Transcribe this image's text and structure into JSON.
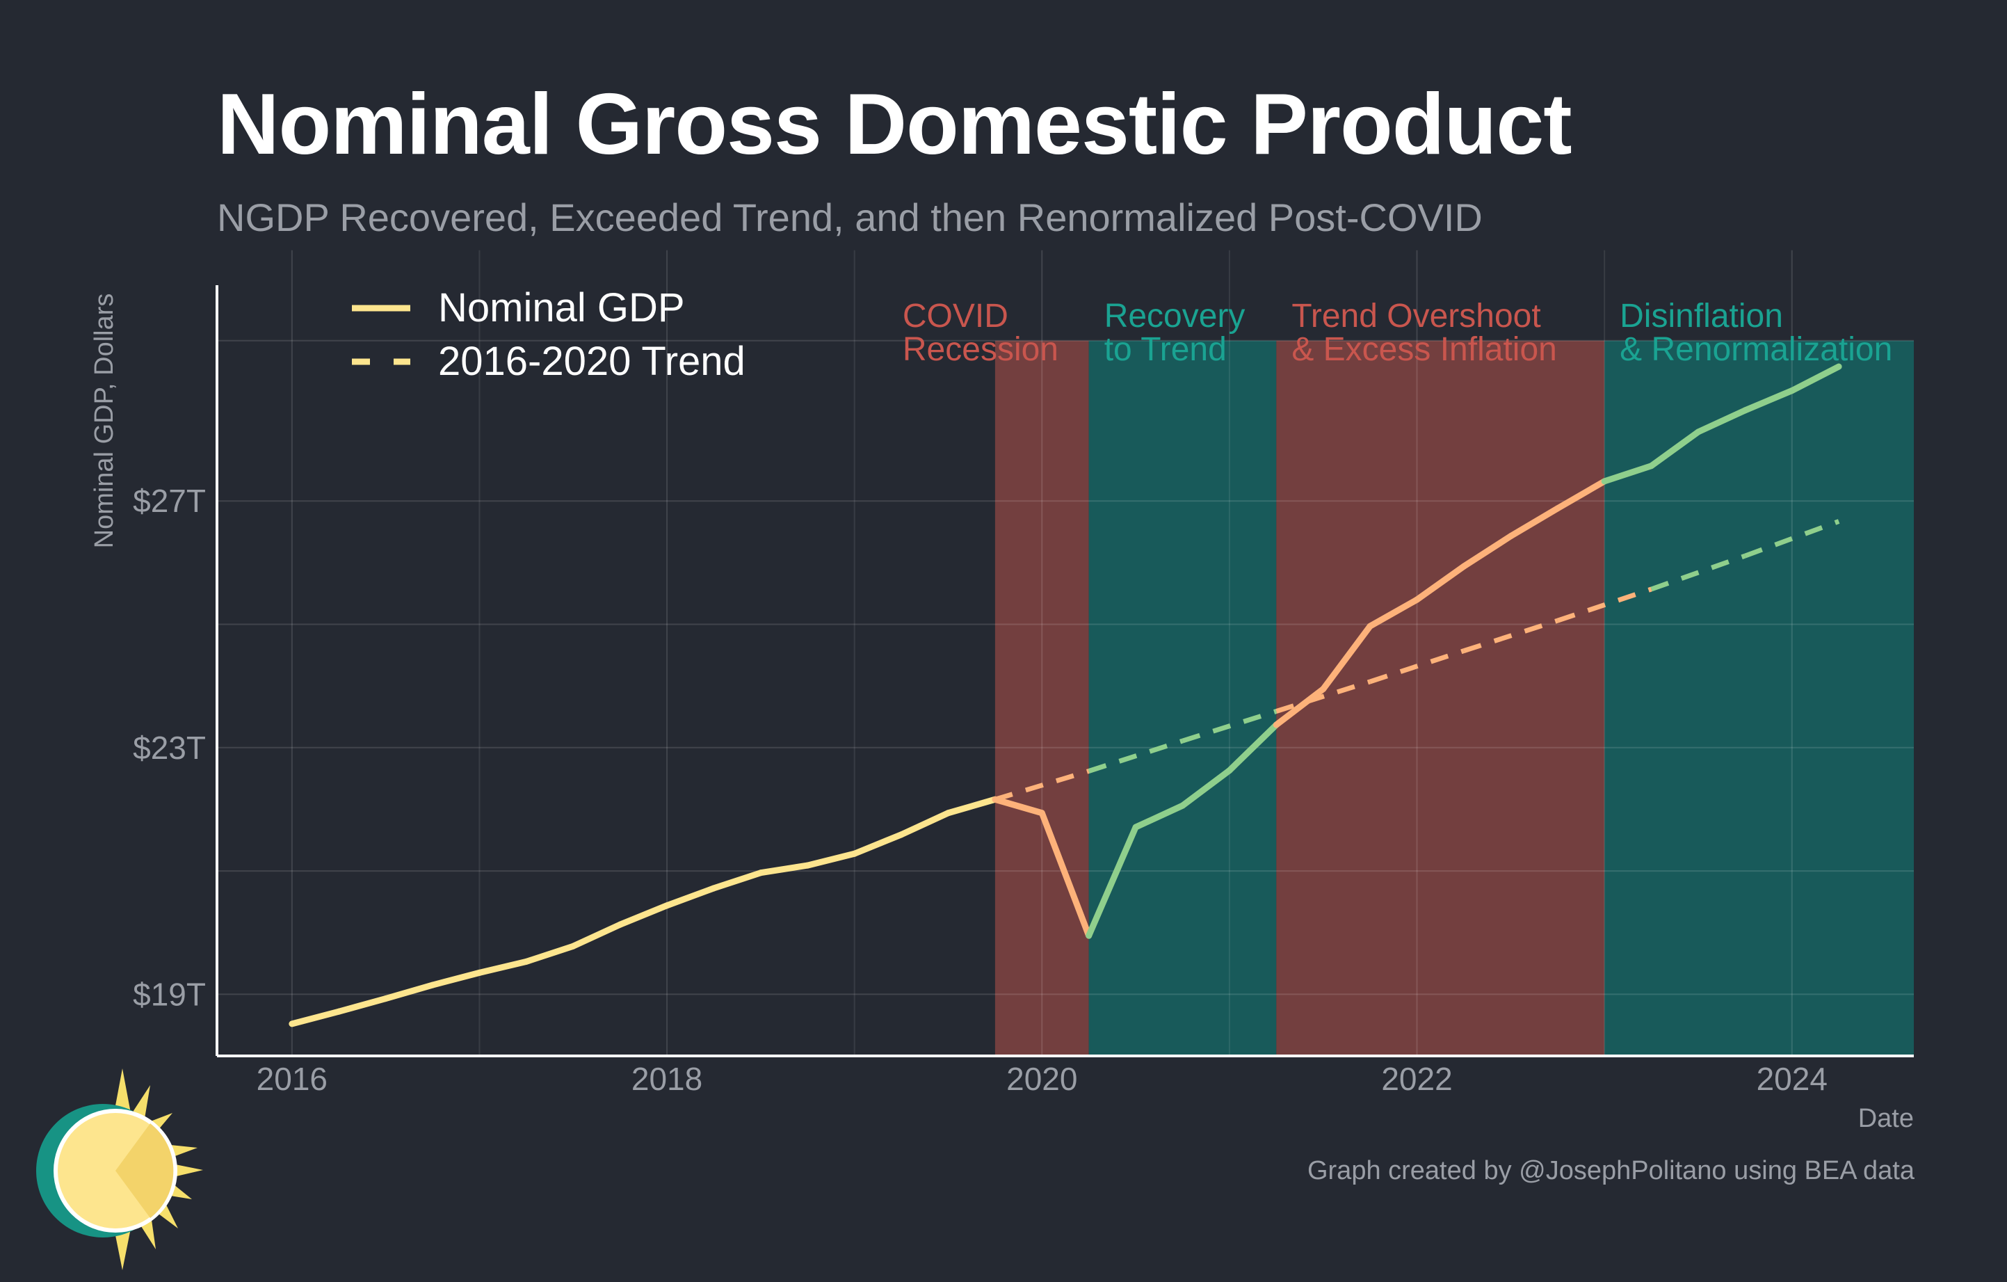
{
  "header": {
    "title": "Nominal Gross Domestic Product",
    "subtitle": "NGDP Recovered, Exceeded Trend, and then Renormalized Post-COVID"
  },
  "footer": {
    "source": "Graph created by @JosephPolitano using BEA data"
  },
  "colors": {
    "background": "#252932",
    "recession_band": "#733f3f",
    "recovery_band": "#185a5a",
    "line_early": "#fde58e",
    "line_covid": "#fdb27a",
    "line_recovery": "#8fcf8c",
    "label_red": "#c9564e",
    "label_teal": "#1aa392"
  },
  "chart_data": {
    "type": "line",
    "title": "Nominal Gross Domestic Product",
    "subtitle": "NGDP Recovered, Exceeded Trend, and then Renormalized Post-COVID",
    "xlabel": "Date",
    "ylabel": "Nominal GDP, Dollars",
    "xlim": [
      2015.6,
      2024.65
    ],
    "ylim": [
      18.0,
      30.5
    ],
    "x_ticks": [
      2016,
      2018,
      2020,
      2022,
      2024
    ],
    "y_ticks": [
      19,
      23,
      27
    ],
    "y_tick_labels": [
      "$19T",
      "$23T",
      "$27T"
    ],
    "grid": true,
    "legend": "top-left",
    "series": [
      {
        "name": "Nominal GDP",
        "style": "solid",
        "x": [
          2016.0,
          2016.25,
          2016.5,
          2016.75,
          2017.0,
          2017.25,
          2017.5,
          2017.75,
          2018.0,
          2018.25,
          2018.5,
          2018.75,
          2019.0,
          2019.25,
          2019.5,
          2019.75,
          2020.0,
          2020.25,
          2020.5,
          2020.75,
          2021.0,
          2021.25,
          2021.5,
          2021.75,
          2022.0,
          2022.25,
          2022.5,
          2022.75,
          2023.0,
          2023.25,
          2023.5,
          2023.75,
          2024.0,
          2024.25
        ],
        "values": [
          18.52,
          18.72,
          18.93,
          19.15,
          19.35,
          19.53,
          19.78,
          20.13,
          20.44,
          20.72,
          20.97,
          21.09,
          21.28,
          21.59,
          21.94,
          22.16,
          21.94,
          19.95,
          21.71,
          22.06,
          22.63,
          23.37,
          23.95,
          24.97,
          25.4,
          25.94,
          26.43,
          26.88,
          27.32,
          27.57,
          28.12,
          28.47,
          28.79,
          29.18
        ]
      },
      {
        "name": "2016-2020 Trend",
        "style": "dashed",
        "x": [
          2019.75,
          2020.25,
          2020.75,
          2021.25,
          2021.75,
          2022.25,
          2022.75,
          2023.25,
          2023.75,
          2024.25
        ],
        "values": [
          22.16,
          22.62,
          23.11,
          23.59,
          24.07,
          24.57,
          25.06,
          25.57,
          26.11,
          26.67
        ]
      }
    ],
    "segments": [
      {
        "label": "COVID\nRecession",
        "from": 2019.75,
        "to": 2020.25,
        "band": "recession_band",
        "line": "line_covid",
        "label_color": "label_red"
      },
      {
        "label": "Recovery\nto Trend",
        "from": 2020.25,
        "to": 2021.25,
        "band": "recovery_band",
        "line": "line_recovery",
        "label_color": "label_teal"
      },
      {
        "label": "Trend Overshoot\n& Excess Inflation",
        "from": 2021.25,
        "to": 2023.0,
        "band": "recession_band",
        "line": "line_covid",
        "label_color": "label_red"
      },
      {
        "label": "Disinflation\n& Renormalization",
        "from": 2023.0,
        "to": 2024.65,
        "band": "recovery_band",
        "line": "line_recovery",
        "label_color": "label_teal"
      }
    ]
  }
}
